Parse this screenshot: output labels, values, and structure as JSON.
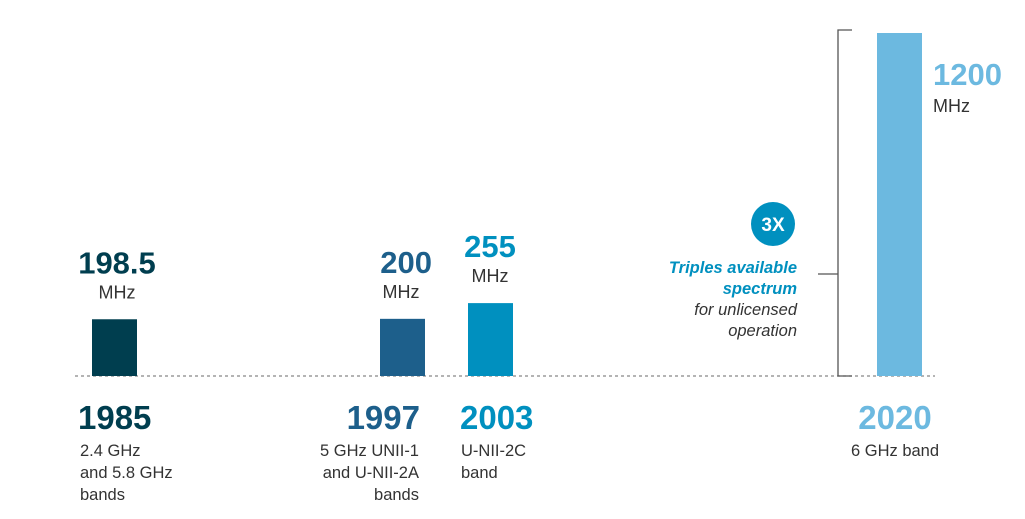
{
  "chart_data": {
    "type": "bar",
    "categories": [
      "1985",
      "1997",
      "2003",
      "2020"
    ],
    "values": [
      198.5,
      200,
      255,
      1200
    ],
    "value_labels": [
      "198.5",
      "200",
      "255",
      "1200"
    ],
    "unit_label": "MHz",
    "descriptions": [
      [
        "2.4 GHz",
        "and 5.8 GHz",
        "bands"
      ],
      [
        "5 GHz UNII-1",
        "and U-NII-2A",
        "bands"
      ],
      [
        "U-NII-2C",
        "band"
      ],
      [
        "6 GHz band"
      ]
    ],
    "colors": [
      "#003e4f",
      "#1d5f8b",
      "#0090bf",
      "#6cb9e0"
    ],
    "annotation": {
      "badge": "3X",
      "bold_lines": [
        "Triples available",
        "spectrum"
      ],
      "plain_lines": [
        "for unlicensed",
        "operation"
      ],
      "badge_color": "#0090bf"
    },
    "grid": false
  }
}
